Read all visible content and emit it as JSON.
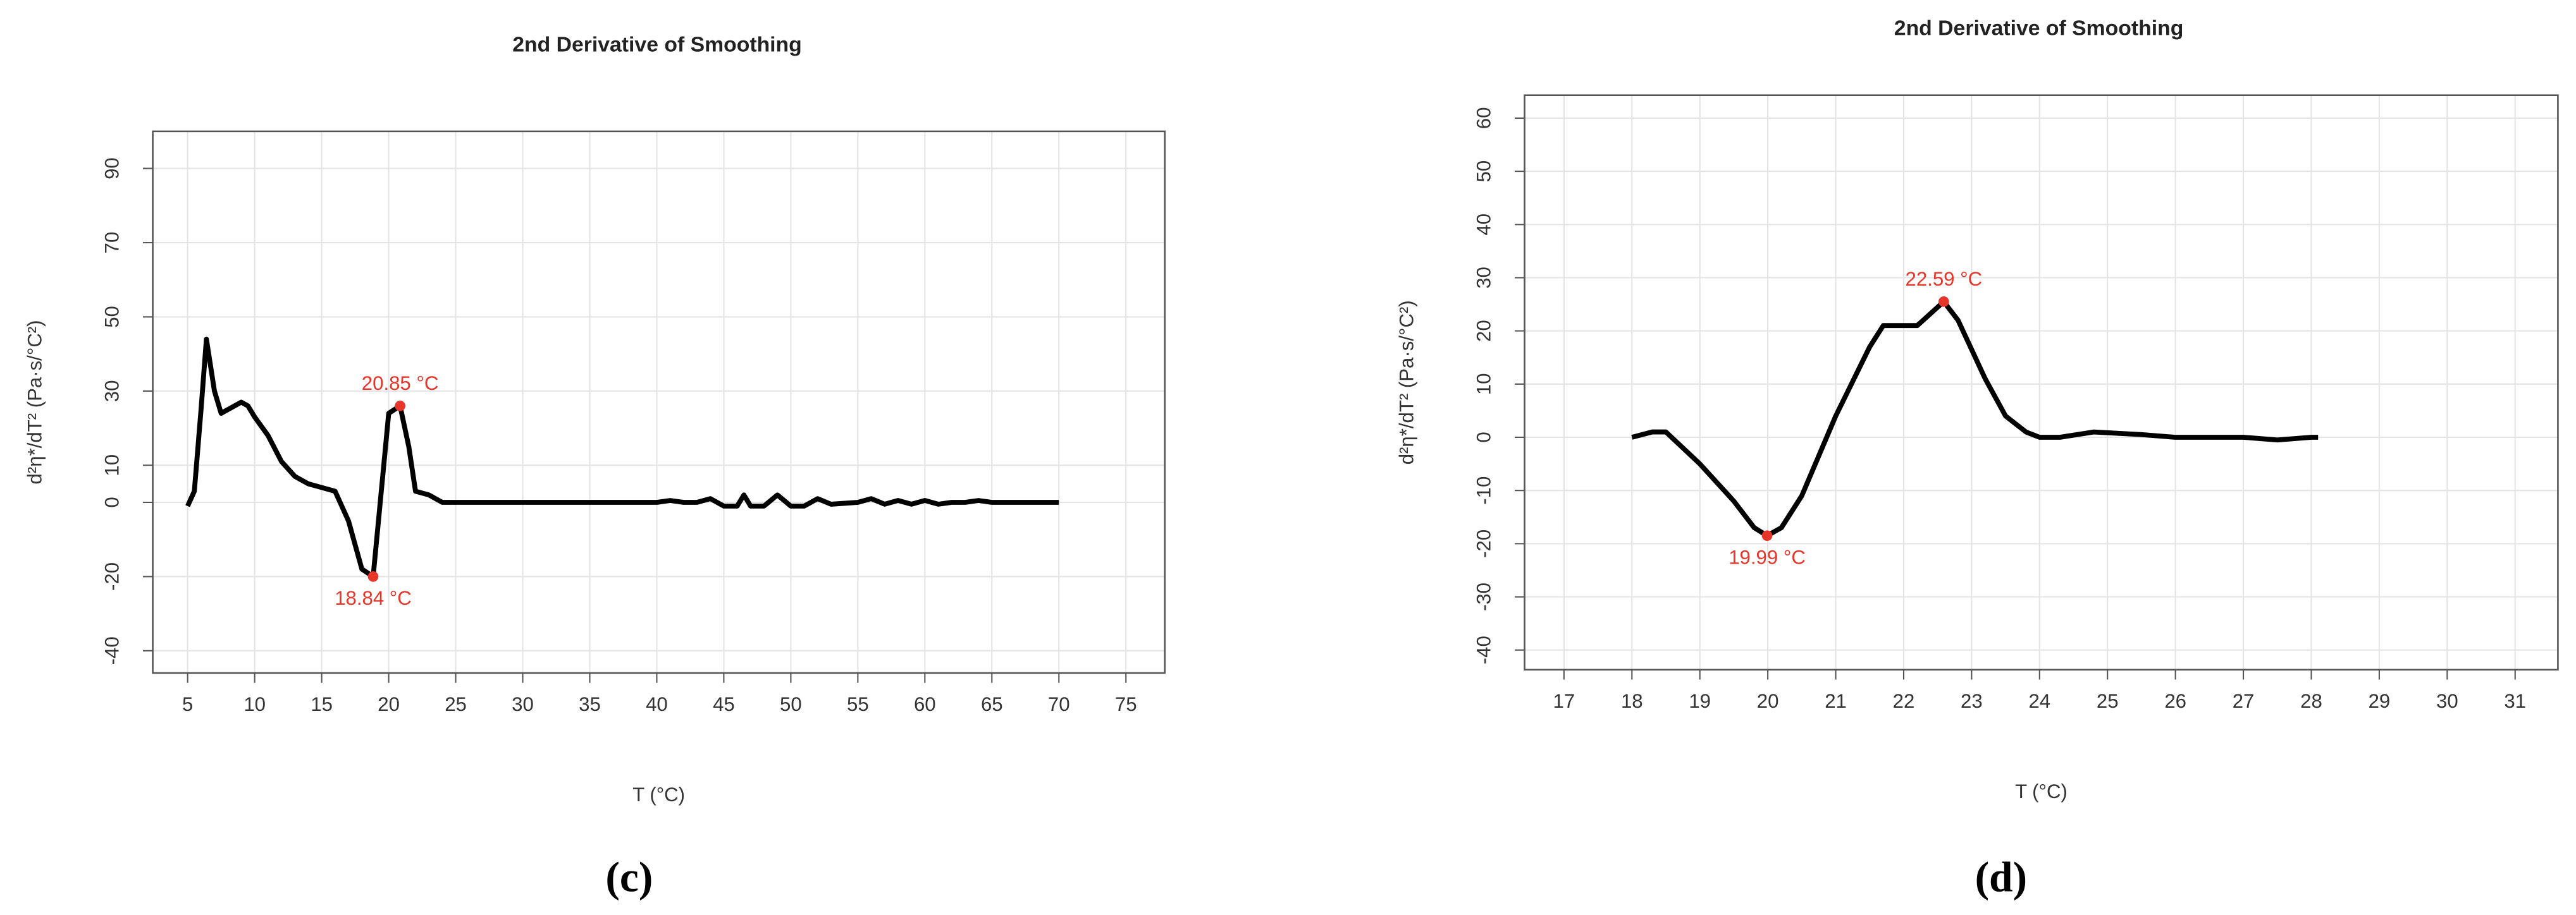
{
  "chart_data": [
    {
      "type": "line",
      "title": "2nd Derivative of Smoothing",
      "panel": "(c)",
      "xlabel": "T (°C)",
      "ylabel": "d²η*/dT² (Pa·s/°C²)",
      "xlim": [
        2.4,
        77.9
      ],
      "ylim": [
        -46,
        100
      ],
      "xticks": [
        5,
        10,
        15,
        20,
        25,
        30,
        35,
        40,
        45,
        50,
        55,
        60,
        65,
        70,
        75
      ],
      "yticks": [
        -40,
        -20,
        0,
        10,
        30,
        50,
        70,
        90
      ],
      "grid": true,
      "color": "#000000",
      "x": [
        5,
        5.5,
        6,
        6.4,
        7,
        7.5,
        8,
        9,
        9.5,
        10,
        11,
        12,
        13,
        14,
        15,
        16,
        17,
        18,
        18.84,
        19.5,
        20,
        20.85,
        21.5,
        22,
        23,
        24,
        25,
        27,
        30,
        35,
        40,
        41,
        42,
        43,
        44,
        45,
        46,
        46.5,
        47,
        48,
        49,
        50,
        51,
        52,
        53,
        55,
        56,
        57,
        58,
        59,
        60,
        61,
        62,
        63,
        64,
        65,
        70
      ],
      "values": [
        -1,
        3,
        25,
        44,
        30,
        24,
        25,
        27,
        26,
        23,
        18,
        11,
        7,
        5,
        4,
        3,
        -5,
        -18,
        -20,
        5,
        24,
        26,
        15,
        3,
        2,
        0,
        0,
        0,
        0,
        0,
        0,
        0.5,
        0,
        0,
        1,
        -1,
        -1,
        2,
        -1,
        -1,
        2,
        -1,
        -1,
        1,
        -0.5,
        0,
        1,
        -0.5,
        0.5,
        -0.5,
        0.5,
        -0.5,
        0,
        0,
        0.5,
        0,
        0
      ],
      "annotations": [
        {
          "x": 20.85,
          "y": 26,
          "label": "20.85 °C"
        },
        {
          "x": 18.84,
          "y": -20,
          "label": "18.84 °C"
        }
      ]
    },
    {
      "type": "line",
      "title": "2nd Derivative of Smoothing",
      "panel": "(d)",
      "xlabel": "T (°C)",
      "ylabel": "d²η*/dT² (Pa·s/°C²)",
      "xlim": [
        16.42,
        31.63
      ],
      "ylim": [
        -43.7,
        64.3
      ],
      "xticks": [
        17,
        18,
        19,
        20,
        21,
        22,
        23,
        24,
        25,
        26,
        27,
        28,
        29,
        30,
        31
      ],
      "yticks": [
        -40,
        -30,
        -20,
        -10,
        0,
        10,
        20,
        30,
        40,
        50,
        60
      ],
      "grid": true,
      "color": "#000000",
      "x": [
        18,
        18.3,
        18.5,
        19,
        19.5,
        19.8,
        19.99,
        20.2,
        20.5,
        21,
        21.5,
        21.7,
        22,
        22.2,
        22.59,
        22.8,
        23.2,
        23.5,
        23.8,
        24,
        24.3,
        24.8,
        25.5,
        26,
        27,
        27.5,
        28,
        28.1
      ],
      "values": [
        0,
        1,
        1,
        -5,
        -12,
        -17,
        -18.5,
        -17,
        -11,
        4,
        17,
        21,
        21,
        21,
        25.5,
        22,
        11,
        4,
        1,
        0,
        0,
        1,
        0.5,
        0,
        0,
        -0.5,
        0,
        0
      ],
      "annotations": [
        {
          "x": 22.59,
          "y": 25.5,
          "label": "22.59 °C"
        },
        {
          "x": 19.99,
          "y": -18.5,
          "label": "19.99 °C"
        }
      ]
    }
  ]
}
